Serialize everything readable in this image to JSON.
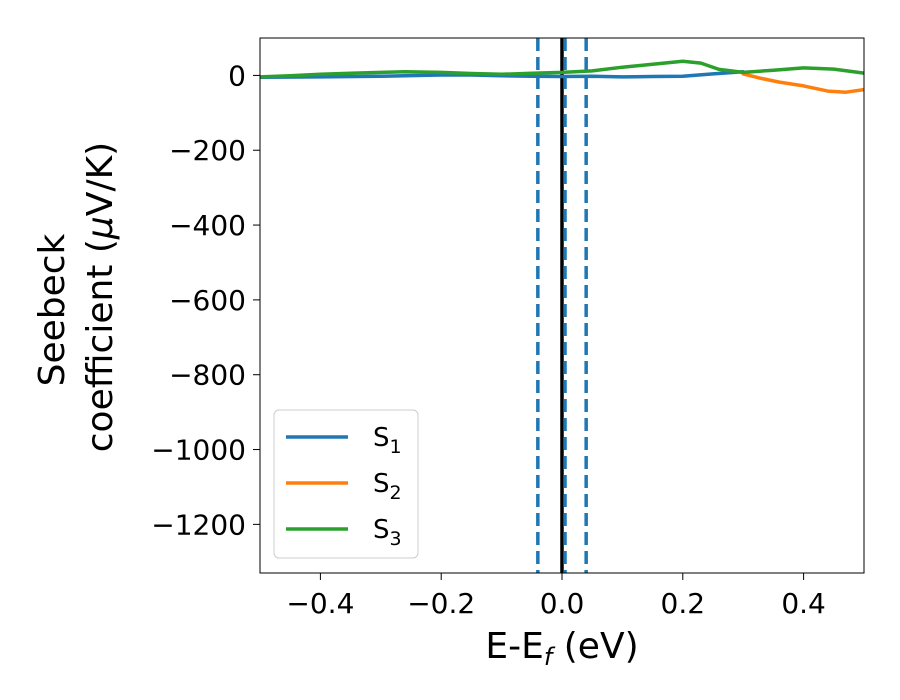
{
  "chart_data": {
    "type": "line",
    "title": "",
    "xlabel": "E-E",
    "xlabel_sub": "f",
    "xlabel_unit": " (eV)",
    "ylabel_line1": "Seebeck",
    "ylabel_line2_pre": "coefficient  (",
    "ylabel_mu": "μ",
    "ylabel_line2_post": "V/K)",
    "xlim": [
      -0.5,
      0.5
    ],
    "ylim": [
      -1330,
      100
    ],
    "xticks": [
      -0.4,
      -0.2,
      0.0,
      0.2,
      0.4
    ],
    "xtick_labels": [
      "−0.4",
      "−0.2",
      "0.0",
      "0.2",
      "0.4"
    ],
    "yticks": [
      0,
      -200,
      -400,
      -600,
      -800,
      -1000,
      -1200
    ],
    "ytick_labels": [
      "0",
      "−200",
      "−400",
      "−600",
      "−800",
      "−1000",
      "−1200"
    ],
    "grid": false,
    "legend_position": "lower-left",
    "vlines": [
      {
        "x": -0.04,
        "style": "dashed",
        "color": "#1f77b4"
      },
      {
        "x": 0.0,
        "style": "solid",
        "color": "#000000"
      },
      {
        "x": 0.005,
        "style": "dashed",
        "color": "#1f77b4"
      },
      {
        "x": 0.04,
        "style": "dashed",
        "color": "#1f77b4"
      }
    ],
    "series": [
      {
        "name": "S",
        "sub": "1",
        "color": "#1f77b4",
        "x": [
          -0.5,
          -0.4,
          -0.3,
          -0.2,
          -0.15,
          -0.1,
          -0.05,
          0.0,
          0.05,
          0.1,
          0.15,
          0.2,
          0.25,
          0.3
        ],
        "y": [
          -5,
          -4,
          -2,
          1,
          1,
          -1,
          -2,
          -3,
          -2,
          -4,
          -3,
          -2,
          4,
          10
        ]
      },
      {
        "name": "S",
        "sub": "2",
        "color": "#ff7f0e",
        "x": [
          0.3,
          0.33,
          0.36,
          0.4,
          0.44,
          0.47,
          0.5
        ],
        "y": [
          4,
          -8,
          -18,
          -28,
          -42,
          -45,
          -38
        ]
      },
      {
        "name": "S",
        "sub": "3",
        "color": "#2ca02c",
        "x": [
          -0.5,
          -0.45,
          -0.4,
          -0.35,
          -0.3,
          -0.26,
          -0.2,
          -0.15,
          -0.1,
          -0.05,
          0.0,
          0.05,
          0.1,
          0.15,
          0.2,
          0.23,
          0.26,
          0.3,
          0.35,
          0.4,
          0.45,
          0.5
        ],
        "y": [
          -4,
          -1,
          3,
          6,
          8,
          10,
          8,
          5,
          3,
          6,
          8,
          12,
          22,
          30,
          38,
          33,
          16,
          8,
          14,
          20,
          17,
          6
        ]
      }
    ]
  }
}
